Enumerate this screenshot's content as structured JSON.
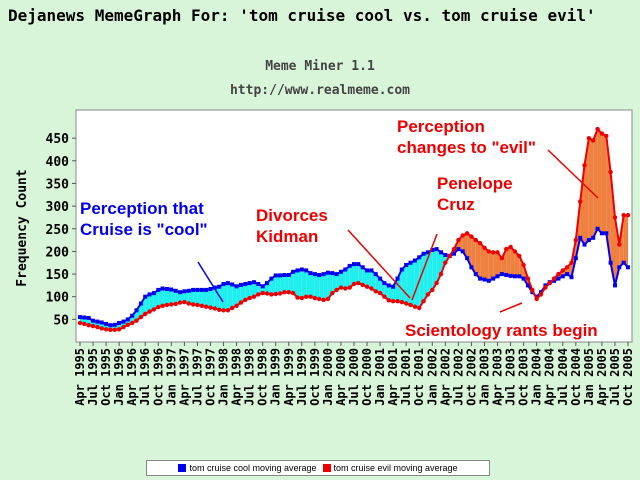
{
  "header": {
    "title": "Dejanews MemeGraph For: 'tom cruise cool vs. tom cruise evil'",
    "subtitle": "Meme Miner 1.1",
    "url": "http://www.realmeme.com"
  },
  "colors": {
    "cool": "#0000ee",
    "evil": "#ee0000",
    "cool_fill": "#22eeee",
    "evil_fill": "#ee8040",
    "annotation_blue": "#0000ee",
    "annotation_red": "#ee0000"
  },
  "chart_data": {
    "type": "line",
    "ylabel": "Frequency Count",
    "xlabel": "",
    "ylim": [
      0,
      500
    ],
    "yticks": [
      50,
      100,
      150,
      200,
      250,
      300,
      350,
      400,
      450
    ],
    "grid": false,
    "x_start": "1995-04",
    "x_step_months": 1,
    "xtick_labels": [
      "Apr 1995",
      "Jul 1995",
      "Oct 1995",
      "Jan 1996",
      "Apr 1996",
      "Jul 1996",
      "Oct 1996",
      "Jan 1997",
      "Apr 1997",
      "Jul 1997",
      "Oct 1997",
      "Jan 1998",
      "Apr 1998",
      "Jul 1998",
      "Oct 1998",
      "Jan 1999",
      "Apr 1999",
      "Jul 1999",
      "Oct 1999",
      "Jan 2000",
      "Apr 2000",
      "Jul 2000",
      "Oct 2000",
      "Jan 2001",
      "Apr 2001",
      "Jul 2001",
      "Oct 2001",
      "Jan 2002",
      "Apr 2002",
      "Jul 2002",
      "Oct 2002",
      "Jan 2003",
      "Apr 2003",
      "Jul 2003",
      "Oct 2003",
      "Jan 2004",
      "Apr 2004",
      "Jul 2004",
      "Oct 2004",
      "Jan 2005",
      "Apr 2005",
      "Jul 2005",
      "Oct 2005"
    ],
    "legend_position": "bottom",
    "series": [
      {
        "name": "tom cruise cool moving average",
        "values": [
          55,
          54,
          53,
          47,
          45,
          43,
          40,
          37,
          38,
          42,
          45,
          50,
          58,
          70,
          85,
          100,
          105,
          108,
          115,
          118,
          117,
          116,
          113,
          110,
          112,
          113,
          115,
          115,
          115,
          115,
          117,
          120,
          122,
          128,
          130,
          127,
          123,
          126,
          128,
          130,
          132,
          128,
          123,
          130,
          140,
          147,
          147,
          148,
          148,
          155,
          158,
          160,
          158,
          152,
          150,
          148,
          150,
          153,
          152,
          150,
          155,
          160,
          168,
          172,
          172,
          165,
          158,
          158,
          150,
          140,
          130,
          125,
          122,
          140,
          160,
          170,
          175,
          180,
          187,
          195,
          198,
          203,
          205,
          198,
          192,
          190,
          195,
          205,
          200,
          185,
          165,
          150,
          140,
          138,
          135,
          140,
          145,
          150,
          148,
          146,
          145,
          145,
          140,
          125,
          110,
          100,
          110,
          125,
          132,
          135,
          140,
          145,
          150,
          143,
          185,
          230,
          215,
          225,
          230,
          250,
          240,
          240,
          175,
          125,
          165,
          175,
          165
        ]
      },
      {
        "name": "tom cruise evil moving average",
        "values": [
          42,
          40,
          37,
          35,
          33,
          30,
          28,
          27,
          27,
          28,
          33,
          38,
          42,
          47,
          55,
          62,
          67,
          72,
          77,
          80,
          82,
          83,
          84,
          87,
          88,
          85,
          83,
          82,
          80,
          78,
          76,
          74,
          71,
          70,
          70,
          75,
          80,
          87,
          93,
          97,
          100,
          105,
          108,
          107,
          105,
          106,
          107,
          110,
          110,
          108,
          98,
          97,
          100,
          100,
          97,
          95,
          93,
          95,
          108,
          115,
          120,
          118,
          120,
          128,
          130,
          126,
          122,
          118,
          112,
          108,
          100,
          92,
          90,
          90,
          88,
          85,
          82,
          78,
          75,
          90,
          105,
          115,
          130,
          150,
          175,
          190,
          205,
          225,
          235,
          240,
          233,
          225,
          218,
          208,
          200,
          198,
          198,
          185,
          205,
          210,
          200,
          190,
          170,
          140,
          115,
          95,
          105,
          120,
          130,
          140,
          150,
          158,
          165,
          175,
          225,
          310,
          390,
          450,
          445,
          470,
          460,
          455,
          375,
          275,
          215,
          280,
          280
        ]
      }
    ],
    "annotations": [
      {
        "text": "Perception that Cruise is \"cool\"",
        "color": "blue"
      },
      {
        "text": "Divorces Kidman",
        "color": "red"
      },
      {
        "text": "Penelope Cruz",
        "color": "red"
      },
      {
        "text": "Perception changes to \"evil\"",
        "color": "red"
      },
      {
        "text": "Scientology rants begin",
        "color": "red"
      }
    ]
  },
  "legend": {
    "cool_label": "tom cruise cool moving average",
    "evil_label": "tom cruise evil moving average"
  }
}
